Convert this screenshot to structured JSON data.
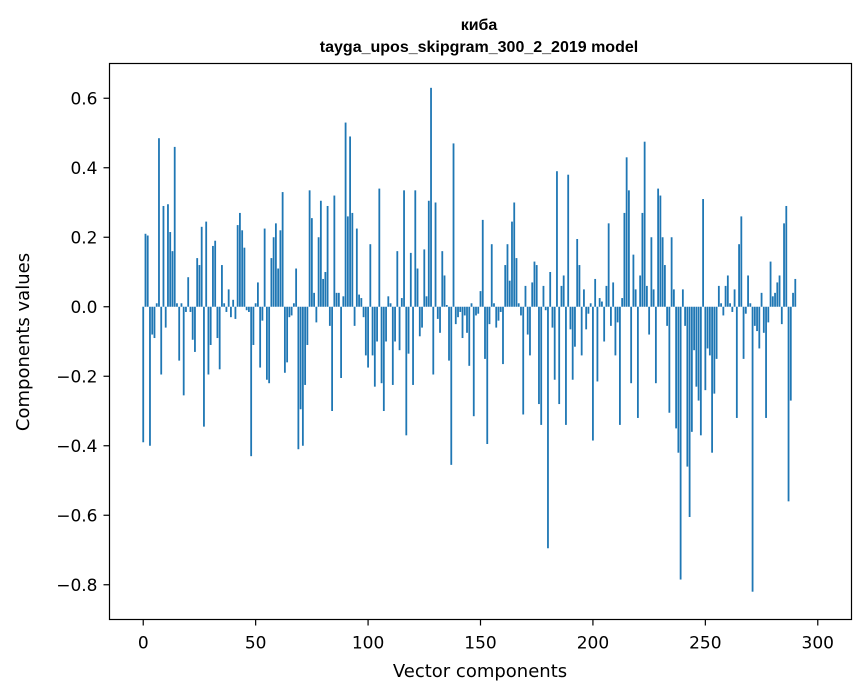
{
  "chart_data": {
    "type": "bar",
    "title": "киба",
    "subtitle": "tayga_upos_skipgram_300_2_2019 model",
    "xlabel": "Vector components",
    "ylabel": "Components values",
    "xlim": [
      -15,
      315
    ],
    "ylim": [
      -0.9,
      0.7
    ],
    "xticks": [
      0,
      50,
      100,
      150,
      200,
      250,
      300
    ],
    "yticks": [
      -0.8,
      -0.6,
      -0.4,
      -0.2,
      0.0,
      0.2,
      0.4,
      0.6
    ],
    "ytick_labels": [
      "−0.8",
      "−0.6",
      "−0.4",
      "−0.2",
      "0.0",
      "0.2",
      "0.4",
      "0.6"
    ],
    "series": [
      {
        "name": "киба",
        "color": "#1f77b4",
        "values": [
          -0.39,
          0.21,
          0.205,
          -0.4,
          -0.08,
          -0.09,
          0.01,
          0.485,
          -0.195,
          0.29,
          -0.06,
          0.295,
          0.215,
          0.16,
          0.46,
          0.01,
          -0.155,
          0.01,
          -0.255,
          -0.015,
          0.085,
          -0.015,
          -0.095,
          -0.13,
          0.14,
          0.12,
          0.23,
          -0.345,
          0.245,
          -0.195,
          -0.11,
          0.175,
          0.19,
          -0.09,
          -0.18,
          0.12,
          0.01,
          -0.015,
          0.05,
          -0.03,
          0.02,
          -0.035,
          0.235,
          0.27,
          0.22,
          0.17,
          -0.01,
          -0.015,
          -0.43,
          -0.11,
          0.01,
          0.07,
          -0.175,
          -0.04,
          0.225,
          -0.21,
          -0.22,
          0.14,
          0.2,
          0.24,
          0.11,
          0.22,
          0.33,
          -0.19,
          -0.16,
          -0.03,
          -0.025,
          0.01,
          0.11,
          -0.41,
          -0.295,
          -0.4,
          -0.225,
          -0.11,
          0.335,
          0.255,
          0.04,
          -0.045,
          0.2,
          0.305,
          0.08,
          0.1,
          0.29,
          -0.055,
          -0.3,
          0.32,
          0.04,
          0.04,
          -0.205,
          0.03,
          0.53,
          0.26,
          0.49,
          0.27,
          -0.055,
          0.225,
          0.035,
          0.025,
          -0.03,
          -0.14,
          -0.175,
          0.18,
          -0.14,
          -0.23,
          -0.1,
          0.34,
          -0.22,
          -0.3,
          -0.1,
          0.03,
          0.01,
          -0.225,
          -0.1,
          0.16,
          -0.125,
          0.025,
          0.335,
          -0.37,
          -0.135,
          0.155,
          -0.225,
          0.335,
          0.11,
          -0.085,
          -0.06,
          0.165,
          0.03,
          0.305,
          0.63,
          -0.195,
          0.3,
          -0.035,
          -0.075,
          0.16,
          0.09,
          0.005,
          -0.155,
          -0.455,
          0.47,
          -0.05,
          -0.03,
          -0.015,
          -0.09,
          -0.025,
          -0.075,
          -0.17,
          0.01,
          -0.315,
          -0.025,
          -0.02,
          0.045,
          0.25,
          -0.15,
          -0.395,
          -0.05,
          0.18,
          0.01,
          -0.06,
          -0.04,
          -0.015,
          -0.165,
          0.12,
          0.18,
          0.075,
          0.245,
          0.3,
          0.14,
          0.01,
          -0.025,
          -0.31,
          0.06,
          -0.08,
          -0.14,
          0.07,
          0.13,
          0.12,
          -0.28,
          -0.34,
          0.06,
          -0.01,
          -0.695,
          0.1,
          -0.06,
          -0.21,
          0.39,
          -0.28,
          0.06,
          0.09,
          -0.34,
          0.38,
          -0.065,
          -0.21,
          -0.115,
          0.195,
          0.12,
          -0.14,
          0.05,
          -0.065,
          -0.02,
          0.01,
          -0.385,
          0.08,
          -0.215,
          0.025,
          0.015,
          -0.1,
          0.06,
          0.24,
          -0.055,
          0.07,
          -0.14,
          -0.045,
          -0.34,
          0.025,
          0.27,
          0.43,
          0.335,
          -0.22,
          0.15,
          0.05,
          -0.32,
          0.09,
          0.27,
          0.475,
          0.06,
          -0.08,
          0.2,
          0.05,
          -0.22,
          0.34,
          0.32,
          0.2,
          0.12,
          -0.055,
          -0.305,
          0.2,
          0.05,
          -0.35,
          -0.42,
          -0.785,
          0.05,
          -0.055,
          -0.46,
          -0.605,
          -0.36,
          -0.125,
          -0.23,
          -0.27,
          -0.37,
          0.31,
          -0.24,
          -0.12,
          -0.14,
          -0.42,
          -0.25,
          -0.15,
          0.06,
          0.01,
          -0.025,
          0.06,
          0.09,
          0.01,
          -0.015,
          0.05,
          -0.32,
          0.18,
          0.26,
          -0.15,
          -0.02,
          0.09,
          0.01,
          -0.82,
          -0.055,
          -0.07,
          -0.12,
          0.04,
          -0.075,
          -0.32,
          -0.045,
          0.13,
          0.03,
          0.04,
          0.07,
          0.09,
          -0.05,
          0.24,
          0.29,
          -0.56,
          -0.27,
          0.04,
          0.08
        ]
      }
    ]
  }
}
